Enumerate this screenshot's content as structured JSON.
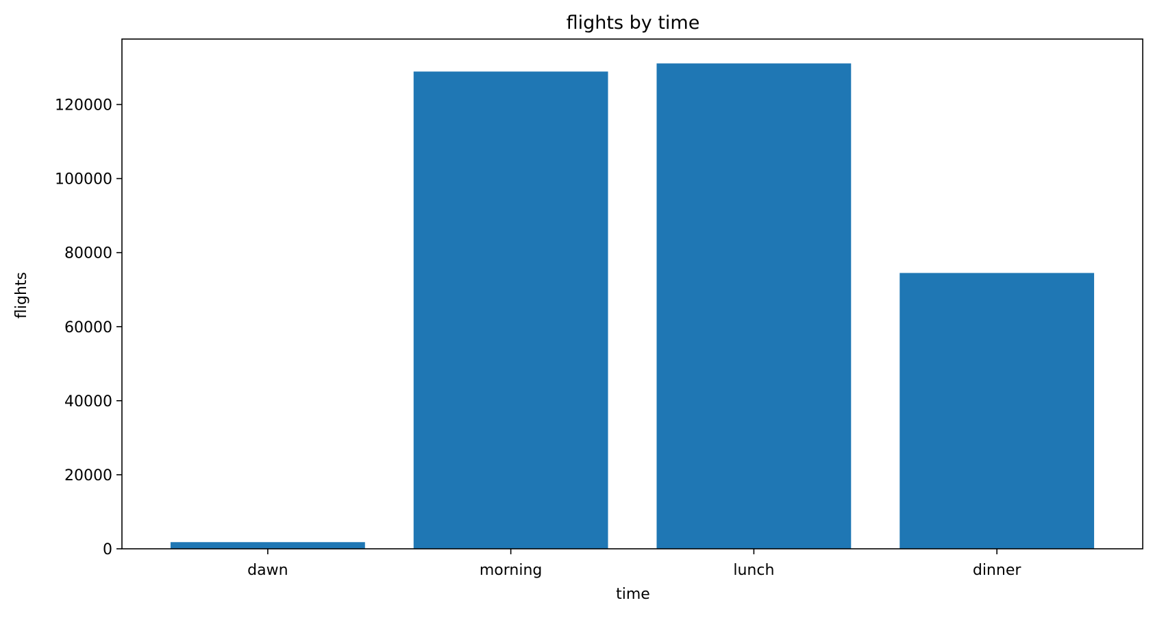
{
  "chart_data": {
    "type": "bar",
    "title": "flights by time",
    "xlabel": "time",
    "ylabel": "flights",
    "categories": [
      "dawn",
      "morning",
      "lunch",
      "dinner"
    ],
    "values": [
      1800,
      128900,
      131100,
      74500
    ],
    "ylim": [
      0,
      137675
    ],
    "yticks": [
      0,
      20000,
      40000,
      60000,
      80000,
      100000,
      120000
    ],
    "ytick_labels": [
      "0",
      "20000",
      "40000",
      "60000",
      "80000",
      "100000",
      "120000"
    ],
    "bar_color": "#1f77b4",
    "grid": false,
    "legend": false
  }
}
